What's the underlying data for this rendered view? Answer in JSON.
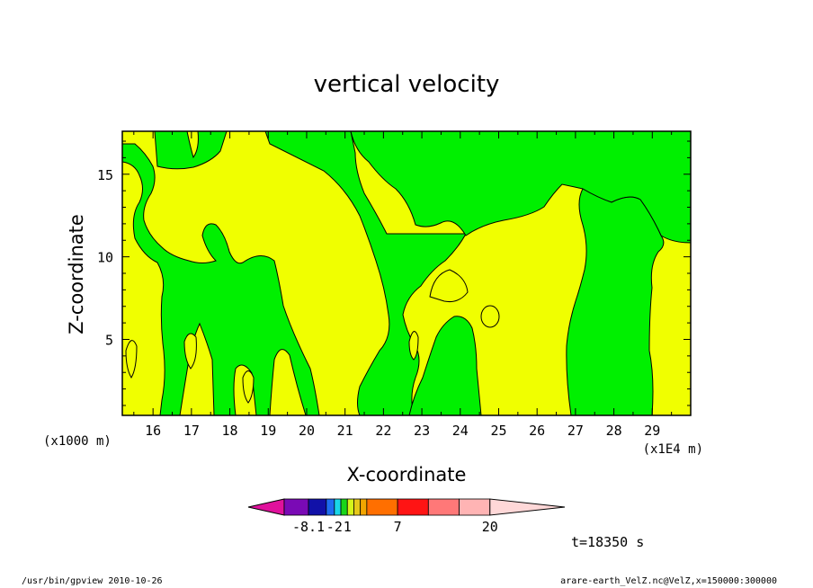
{
  "chart_data": {
    "type": "heatmap",
    "title": "vertical velocity",
    "xlabel": "X-coordinate",
    "ylabel": "Z-coordinate",
    "x_unit_left": "(x1000 m)",
    "x_unit_right": "(x1E4 m)",
    "xlim": [
      15.2,
      30.0
    ],
    "ylim": [
      0.4,
      17.6
    ],
    "x_ticks": [
      "16",
      "17",
      "18",
      "19",
      "20",
      "21",
      "22",
      "23",
      "24",
      "25",
      "26",
      "27",
      "28",
      "29"
    ],
    "y_ticks": [
      "5",
      "10",
      "15"
    ],
    "colorbar": {
      "colors": [
        "#e0119c",
        "#7a0ab5",
        "#1111a8",
        "#1e6cf0",
        "#19d6e8",
        "#19d619",
        "#d4f51a",
        "#e6c81a",
        "#f2a500",
        "#ff6f00",
        "#ff1414",
        "#ff7878",
        "#ffb4b4",
        "#ffd8d8"
      ],
      "labels": [
        "-8.1",
        "-2",
        "1",
        "7",
        "20"
      ]
    },
    "palette": {
      "positive": "#f0ff00",
      "negative": "#00f000",
      "contour": "#000000"
    }
  },
  "time_label": "t=18350 s",
  "footer_left": "/usr/bin/gpview   2010-10-26",
  "footer_right": "arare-earth_VelZ.nc@VelZ,x=150000:300000"
}
